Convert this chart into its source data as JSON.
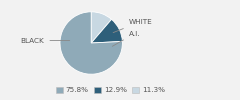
{
  "labels": [
    "WHITE",
    "A.I.",
    "BLACK"
  ],
  "values": [
    11.3,
    12.9,
    75.8
  ],
  "colors": [
    "#C8D8E2",
    "#2E5F7A",
    "#8FAAB8"
  ],
  "legend_order": [
    "BLACK",
    "A.I.",
    "WHITE"
  ],
  "legend_values": [
    "75.8%",
    "12.9%",
    "11.3%"
  ],
  "legend_colors": [
    "#8FAAB8",
    "#2E5F7A",
    "#C8D8E2"
  ],
  "startangle": 90,
  "figsize": [
    2.4,
    1.0
  ],
  "dpi": 100,
  "bg_color": "#F2F2F2"
}
